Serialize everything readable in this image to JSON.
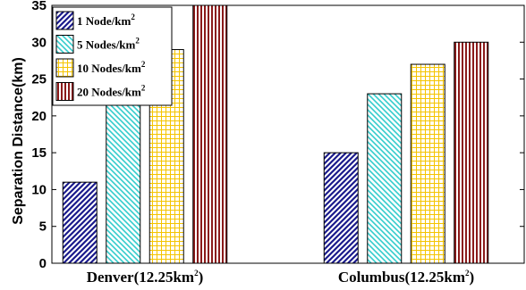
{
  "chart_data": {
    "type": "bar",
    "categories": [
      "Denver(12.25km²)",
      "Columbus(12.25km²)"
    ],
    "category_parts": [
      {
        "base": "Denver(12.25km",
        "sup": "2",
        "tail": ")"
      },
      {
        "base": "Columbus(12.25km",
        "sup": "2",
        "tail": ")"
      }
    ],
    "series": [
      {
        "name": "1 Node/km²",
        "name_base": "1 Node/km",
        "name_sup": "2",
        "values": [
          11,
          15
        ],
        "color": "#1a1a8c",
        "pattern": "diag-left"
      },
      {
        "name": "5 Nodes/km²",
        "name_base": "5 Nodes/km",
        "name_sup": "2",
        "values": [
          21.5,
          23
        ],
        "color": "#33cccc",
        "pattern": "diag-right"
      },
      {
        "name": "10 Nodes/km²",
        "name_base": "10 Nodes/km",
        "name_sup": "2",
        "values": [
          29,
          27
        ],
        "color": "#f5c400",
        "pattern": "grid"
      },
      {
        "name": "20 Nodes/km²",
        "name_base": "20 Nodes/km",
        "name_sup": "2",
        "values": [
          35,
          30
        ],
        "color": "#8b1a1a",
        "pattern": "vertical"
      }
    ],
    "xlabel": "",
    "ylabel": "Separation Distance(km)",
    "ylim": [
      0,
      35
    ],
    "yticks": [
      "0",
      "5",
      "10",
      "15",
      "20",
      "25",
      "30",
      "35"
    ],
    "grid": false,
    "legend_position": "top-left"
  }
}
